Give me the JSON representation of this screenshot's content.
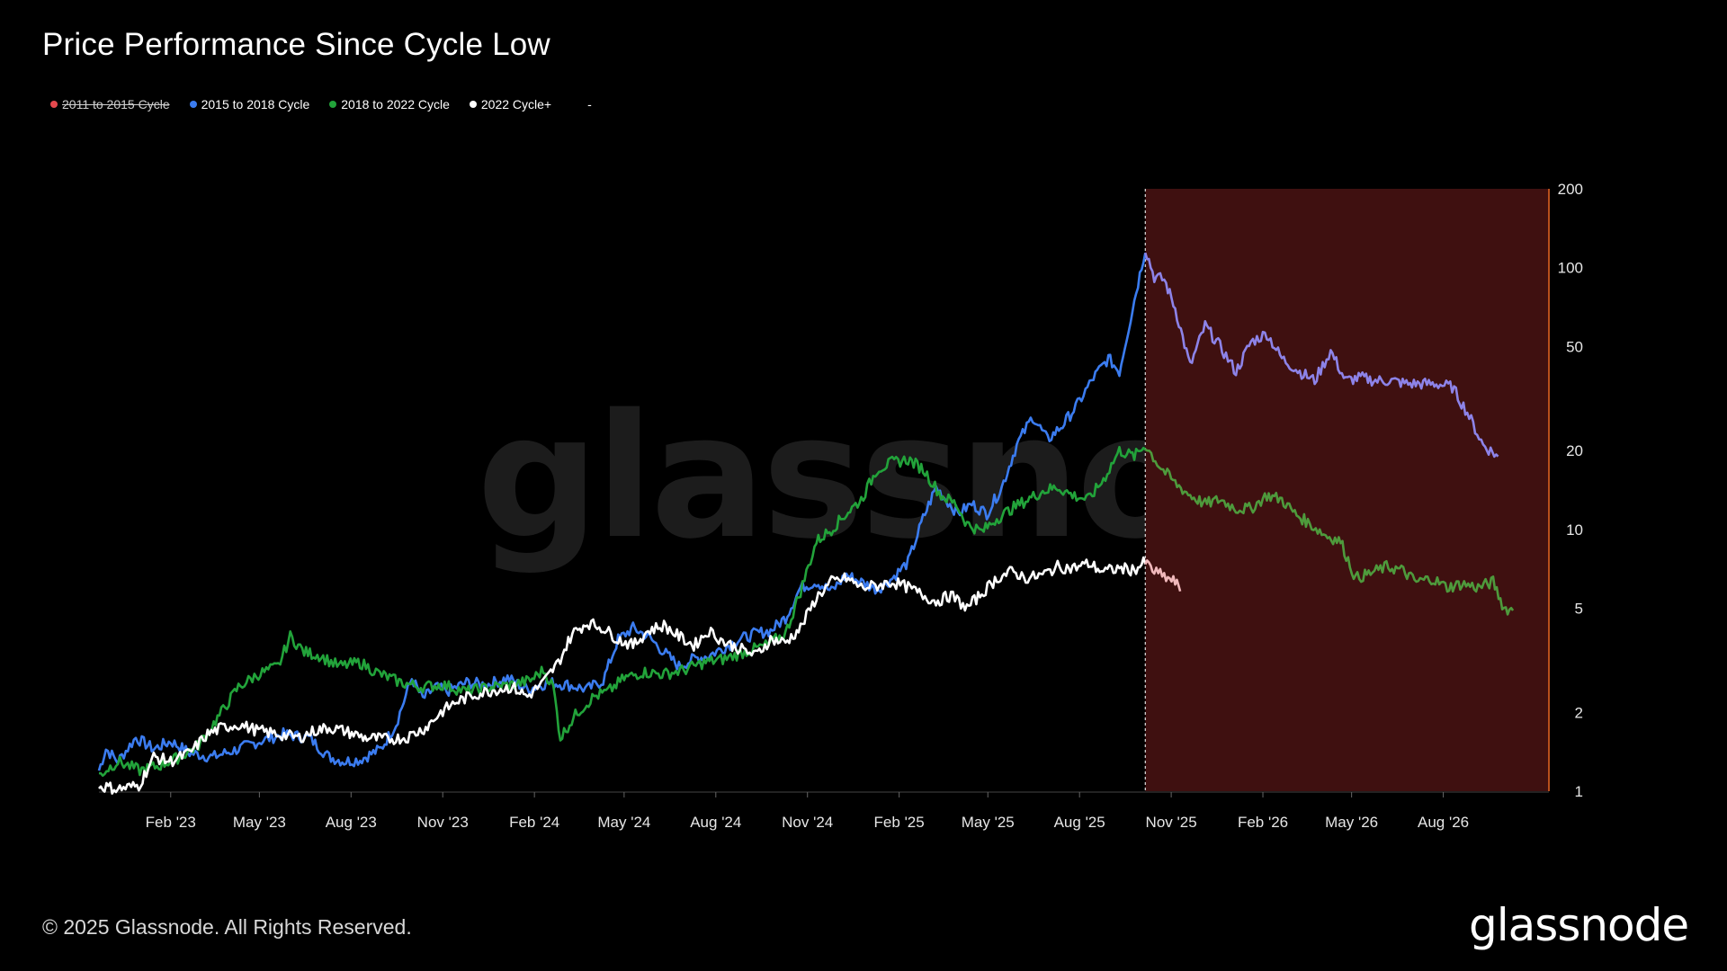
{
  "title": "Price Performance Since Cycle Low",
  "legend": [
    {
      "label": "2011 to 2015 Cycle",
      "color": "#e5484d",
      "disabled": true
    },
    {
      "label": "2015 to 2018 Cycle",
      "color": "#3b7cf0",
      "disabled": false
    },
    {
      "label": "2018 to 2022 Cycle",
      "color": "#22a33a",
      "disabled": false
    },
    {
      "label": "2022 Cycle+",
      "color": "#ffffff",
      "disabled": false
    }
  ],
  "legend_extra": "-",
  "watermark": "glassnode",
  "footer": {
    "copyright": "© 2025 Glassnode. All Rights Reserved.",
    "logo": "glassnode"
  },
  "colors": {
    "background": "#000000",
    "highlight_region": "#3f1010",
    "highlight_border": "#b8501d",
    "axis_line": "#444444"
  },
  "chart_data": {
    "type": "line",
    "title": "Price Performance Since Cycle Low",
    "y_scale": "log",
    "ylim": [
      1,
      200
    ],
    "y_ticks": [
      1,
      2,
      5,
      10,
      20,
      50,
      100,
      200
    ],
    "y_tick_labels": [
      "1",
      "2",
      "5",
      "10",
      "20",
      "50",
      "100",
      "200"
    ],
    "y_axis_side": "right",
    "x_range": [
      "2022-11-21",
      "2026-11-15"
    ],
    "x_ticks": [
      "2023-02-01",
      "2023-05-01",
      "2023-08-01",
      "2023-11-01",
      "2024-02-01",
      "2024-05-01",
      "2024-08-01",
      "2024-11-01",
      "2025-02-01",
      "2025-05-01",
      "2025-08-01",
      "2025-11-01",
      "2026-02-01",
      "2026-05-01",
      "2026-08-01"
    ],
    "x_tick_labels": [
      "Feb '23",
      "May '23",
      "Aug '23",
      "Nov '23",
      "Feb '24",
      "May '24",
      "Aug '24",
      "Nov '24",
      "Feb '25",
      "May '25",
      "Aug '25",
      "Nov '25",
      "Feb '26",
      "May '26",
      "Aug '26"
    ],
    "highlight_region": {
      "start": "2025-10-06",
      "end": "2026-11-15",
      "description": "shaded projection region"
    },
    "series": [
      {
        "name": "2015 to 2018 Cycle",
        "color": "#3b7cf0",
        "points": [
          [
            "2022-11-21",
            1.2
          ],
          [
            "2022-11-28",
            1.45
          ],
          [
            "2022-12-10",
            1.3
          ],
          [
            "2022-12-28",
            1.6
          ],
          [
            "2023-01-15",
            1.45
          ],
          [
            "2023-02-01",
            1.55
          ],
          [
            "2023-02-20",
            1.4
          ],
          [
            "2023-03-15",
            1.35
          ],
          [
            "2023-04-10",
            1.45
          ],
          [
            "2023-05-01",
            1.55
          ],
          [
            "2023-05-25",
            1.65
          ],
          [
            "2023-06-20",
            1.6
          ],
          [
            "2023-07-10",
            1.35
          ],
          [
            "2023-07-25",
            1.3
          ],
          [
            "2023-08-10",
            1.32
          ],
          [
            "2023-08-31",
            1.45
          ],
          [
            "2023-09-15",
            1.8
          ],
          [
            "2023-10-01",
            2.7
          ],
          [
            "2023-10-12",
            2.25
          ],
          [
            "2023-10-25",
            2.5
          ],
          [
            "2023-11-05",
            2.4
          ],
          [
            "2023-11-25",
            2.6
          ],
          [
            "2023-12-15",
            2.55
          ],
          [
            "2024-01-05",
            2.7
          ],
          [
            "2024-01-25",
            2.45
          ],
          [
            "2024-02-15",
            2.6
          ],
          [
            "2024-03-05",
            2.55
          ],
          [
            "2024-03-25",
            2.45
          ],
          [
            "2024-04-10",
            2.65
          ],
          [
            "2024-04-25",
            3.8
          ],
          [
            "2024-05-10",
            4.2
          ],
          [
            "2024-05-25",
            3.9
          ],
          [
            "2024-06-10",
            3.4
          ],
          [
            "2024-06-25",
            3.0
          ],
          [
            "2024-07-10",
            3.2
          ],
          [
            "2024-07-25",
            3.3
          ],
          [
            "2024-08-10",
            3.55
          ],
          [
            "2024-08-25",
            3.8
          ],
          [
            "2024-09-10",
            4.0
          ],
          [
            "2024-09-25",
            4.1
          ],
          [
            "2024-10-10",
            4.6
          ],
          [
            "2024-10-25",
            6.0
          ],
          [
            "2024-11-10",
            6.3
          ],
          [
            "2024-11-25",
            5.8
          ],
          [
            "2024-12-10",
            6.7
          ],
          [
            "2024-12-25",
            6.3
          ],
          [
            "2025-01-10",
            5.9
          ],
          [
            "2025-01-25",
            6.5
          ],
          [
            "2025-02-10",
            7.5
          ],
          [
            "2025-02-25",
            11.0
          ],
          [
            "2025-03-10",
            14.5
          ],
          [
            "2025-03-20",
            13.0
          ],
          [
            "2025-04-01",
            11.5
          ],
          [
            "2025-04-15",
            12.5
          ],
          [
            "2025-04-30",
            11.5
          ],
          [
            "2025-05-15",
            14.5
          ],
          [
            "2025-05-30",
            21.0
          ],
          [
            "2025-06-15",
            27.0
          ],
          [
            "2025-06-30",
            22.0
          ],
          [
            "2025-07-15",
            25.0
          ],
          [
            "2025-07-30",
            30.0
          ],
          [
            "2025-08-15",
            38.0
          ],
          [
            "2025-08-30",
            45.0
          ],
          [
            "2025-09-10",
            40.0
          ],
          [
            "2025-09-25",
            75.0
          ],
          [
            "2025-10-06",
            118.0
          ],
          [
            "2025-10-15",
            92.0
          ],
          [
            "2025-10-25",
            90.0
          ],
          [
            "2025-11-05",
            70.0
          ],
          [
            "2025-11-20",
            42.0
          ],
          [
            "2025-12-05",
            60.0
          ],
          [
            "2025-12-20",
            50.0
          ],
          [
            "2026-01-05",
            40.0
          ],
          [
            "2026-01-20",
            52.0
          ],
          [
            "2026-02-05",
            56.0
          ],
          [
            "2026-02-20",
            45.0
          ],
          [
            "2026-03-10",
            40.0
          ],
          [
            "2026-03-25",
            37.0
          ],
          [
            "2026-04-10",
            48.0
          ],
          [
            "2026-04-25",
            37.0
          ],
          [
            "2026-05-10",
            38.0
          ],
          [
            "2026-05-25",
            37.0
          ],
          [
            "2026-06-10",
            37.0
          ],
          [
            "2026-06-25",
            36.0
          ],
          [
            "2026-07-10",
            36.0
          ],
          [
            "2026-07-25",
            36.0
          ],
          [
            "2026-08-10",
            35.0
          ],
          [
            "2026-08-25",
            28.0
          ],
          [
            "2026-09-10",
            21.0
          ],
          [
            "2026-09-25",
            19.0
          ]
        ]
      },
      {
        "name": "2018 to 2022 Cycle",
        "color": "#22a33a",
        "points": [
          [
            "2022-11-21",
            1.15
          ],
          [
            "2022-12-10",
            1.3
          ],
          [
            "2023-01-01",
            1.2
          ],
          [
            "2023-01-20",
            1.25
          ],
          [
            "2023-02-10",
            1.35
          ],
          [
            "2023-03-01",
            1.5
          ],
          [
            "2023-03-20",
            1.9
          ],
          [
            "2023-04-10",
            2.5
          ],
          [
            "2023-04-30",
            2.8
          ],
          [
            "2023-05-20",
            3.0
          ],
          [
            "2023-06-01",
            3.9
          ],
          [
            "2023-06-15",
            3.4
          ],
          [
            "2023-06-30",
            3.3
          ],
          [
            "2023-07-20",
            3.0
          ],
          [
            "2023-08-10",
            3.1
          ],
          [
            "2023-08-30",
            2.8
          ],
          [
            "2023-09-20",
            2.6
          ],
          [
            "2023-10-10",
            2.5
          ],
          [
            "2023-11-01",
            2.55
          ],
          [
            "2023-11-25",
            2.4
          ],
          [
            "2023-12-20",
            2.5
          ],
          [
            "2024-01-10",
            2.55
          ],
          [
            "2024-01-28",
            2.65
          ],
          [
            "2024-02-10",
            2.9
          ],
          [
            "2024-02-20",
            2.5
          ],
          [
            "2024-02-27",
            1.6
          ],
          [
            "2024-03-15",
            2.0
          ],
          [
            "2024-04-01",
            2.3
          ],
          [
            "2024-04-15",
            2.4
          ],
          [
            "2024-05-01",
            2.7
          ],
          [
            "2024-05-20",
            2.85
          ],
          [
            "2024-06-10",
            2.8
          ],
          [
            "2024-06-30",
            2.9
          ],
          [
            "2024-07-20",
            3.1
          ],
          [
            "2024-08-10",
            3.2
          ],
          [
            "2024-08-30",
            3.4
          ],
          [
            "2024-09-20",
            3.6
          ],
          [
            "2024-10-10",
            4.0
          ],
          [
            "2024-10-25",
            5.8
          ],
          [
            "2024-11-10",
            9.0
          ],
          [
            "2024-11-25",
            10.0
          ],
          [
            "2024-12-10",
            11.5
          ],
          [
            "2024-12-25",
            13.0
          ],
          [
            "2025-01-10",
            17.0
          ],
          [
            "2025-01-25",
            18.0
          ],
          [
            "2025-02-10",
            18.5
          ],
          [
            "2025-02-25",
            17.0
          ],
          [
            "2025-03-15",
            13.5
          ],
          [
            "2025-03-30",
            12.5
          ],
          [
            "2025-04-10",
            10.5
          ],
          [
            "2025-04-25",
            9.8
          ],
          [
            "2025-05-10",
            11.0
          ],
          [
            "2025-05-25",
            12.0
          ],
          [
            "2025-06-10",
            13.0
          ],
          [
            "2025-06-25",
            14.0
          ],
          [
            "2025-07-10",
            14.5
          ],
          [
            "2025-07-25",
            13.5
          ],
          [
            "2025-08-10",
            13.0
          ],
          [
            "2025-08-25",
            15.5
          ],
          [
            "2025-09-10",
            20.0
          ],
          [
            "2025-09-25",
            19.0
          ],
          [
            "2025-10-06",
            21.0
          ],
          [
            "2025-10-20",
            17.5
          ],
          [
            "2025-11-05",
            15.0
          ],
          [
            "2025-11-20",
            13.5
          ],
          [
            "2025-12-05",
            12.5
          ],
          [
            "2025-12-20",
            13.0
          ],
          [
            "2026-01-05",
            12.0
          ],
          [
            "2026-01-20",
            12.0
          ],
          [
            "2026-02-05",
            13.5
          ],
          [
            "2026-02-20",
            13.0
          ],
          [
            "2026-03-05",
            11.5
          ],
          [
            "2026-03-20",
            10.5
          ],
          [
            "2026-04-05",
            9.5
          ],
          [
            "2026-04-20",
            9.0
          ],
          [
            "2026-05-05",
            6.5
          ],
          [
            "2026-05-20",
            6.8
          ],
          [
            "2026-06-05",
            7.2
          ],
          [
            "2026-06-20",
            7.0
          ],
          [
            "2026-07-05",
            6.3
          ],
          [
            "2026-07-20",
            6.5
          ],
          [
            "2026-08-05",
            6.0
          ],
          [
            "2026-08-20",
            6.2
          ],
          [
            "2026-09-05",
            6.0
          ],
          [
            "2026-09-20",
            6.3
          ],
          [
            "2026-10-01",
            5.0
          ],
          [
            "2026-10-10",
            4.9
          ]
        ]
      },
      {
        "name": "2022 Cycle+",
        "color": "#ffffff",
        "points": [
          [
            "2022-11-21",
            1.05
          ],
          [
            "2022-12-10",
            1.02
          ],
          [
            "2022-12-31",
            1.05
          ],
          [
            "2023-01-15",
            1.35
          ],
          [
            "2023-02-01",
            1.3
          ],
          [
            "2023-02-20",
            1.4
          ],
          [
            "2023-03-10",
            1.65
          ],
          [
            "2023-03-25",
            1.75
          ],
          [
            "2023-04-10",
            1.8
          ],
          [
            "2023-04-30",
            1.7
          ],
          [
            "2023-05-20",
            1.65
          ],
          [
            "2023-06-10",
            1.6
          ],
          [
            "2023-06-25",
            1.7
          ],
          [
            "2023-07-10",
            1.75
          ],
          [
            "2023-07-25",
            1.7
          ],
          [
            "2023-08-15",
            1.6
          ],
          [
            "2023-09-05",
            1.58
          ],
          [
            "2023-09-25",
            1.6
          ],
          [
            "2023-10-15",
            1.75
          ],
          [
            "2023-10-30",
            2.0
          ],
          [
            "2023-11-15",
            2.2
          ],
          [
            "2023-12-05",
            2.35
          ],
          [
            "2023-12-25",
            2.45
          ],
          [
            "2024-01-10",
            2.5
          ],
          [
            "2024-01-25",
            2.3
          ],
          [
            "2024-02-10",
            2.6
          ],
          [
            "2024-02-25",
            3.1
          ],
          [
            "2024-03-10",
            4.0
          ],
          [
            "2024-03-25",
            4.4
          ],
          [
            "2024-04-10",
            4.2
          ],
          [
            "2024-04-25",
            3.8
          ],
          [
            "2024-05-10",
            3.6
          ],
          [
            "2024-05-25",
            4.1
          ],
          [
            "2024-06-10",
            4.3
          ],
          [
            "2024-06-25",
            3.9
          ],
          [
            "2024-07-10",
            3.6
          ],
          [
            "2024-07-25",
            4.1
          ],
          [
            "2024-08-10",
            3.7
          ],
          [
            "2024-08-25",
            3.5
          ],
          [
            "2024-09-10",
            3.3
          ],
          [
            "2024-09-25",
            3.8
          ],
          [
            "2024-10-10",
            3.7
          ],
          [
            "2024-10-25",
            4.2
          ],
          [
            "2024-11-10",
            5.5
          ],
          [
            "2024-11-25",
            6.3
          ],
          [
            "2024-12-10",
            6.5
          ],
          [
            "2024-12-25",
            6.0
          ],
          [
            "2025-01-10",
            6.1
          ],
          [
            "2025-01-25",
            6.3
          ],
          [
            "2025-02-10",
            6.0
          ],
          [
            "2025-02-25",
            5.6
          ],
          [
            "2025-03-10",
            5.3
          ],
          [
            "2025-03-25",
            5.6
          ],
          [
            "2025-04-10",
            5.0
          ],
          [
            "2025-04-25",
            5.7
          ],
          [
            "2025-05-10",
            6.5
          ],
          [
            "2025-05-25",
            6.9
          ],
          [
            "2025-06-10",
            6.5
          ],
          [
            "2025-06-25",
            6.7
          ],
          [
            "2025-07-10",
            7.2
          ],
          [
            "2025-07-25",
            7.1
          ],
          [
            "2025-08-10",
            7.4
          ],
          [
            "2025-08-25",
            6.9
          ],
          [
            "2025-09-10",
            7.1
          ],
          [
            "2025-09-25",
            7.0
          ],
          [
            "2025-10-06",
            7.5
          ],
          [
            "2025-10-15",
            6.9
          ],
          [
            "2025-10-25",
            6.6
          ],
          [
            "2025-11-05",
            6.3
          ],
          [
            "2025-11-10",
            5.8
          ]
        ]
      }
    ]
  }
}
